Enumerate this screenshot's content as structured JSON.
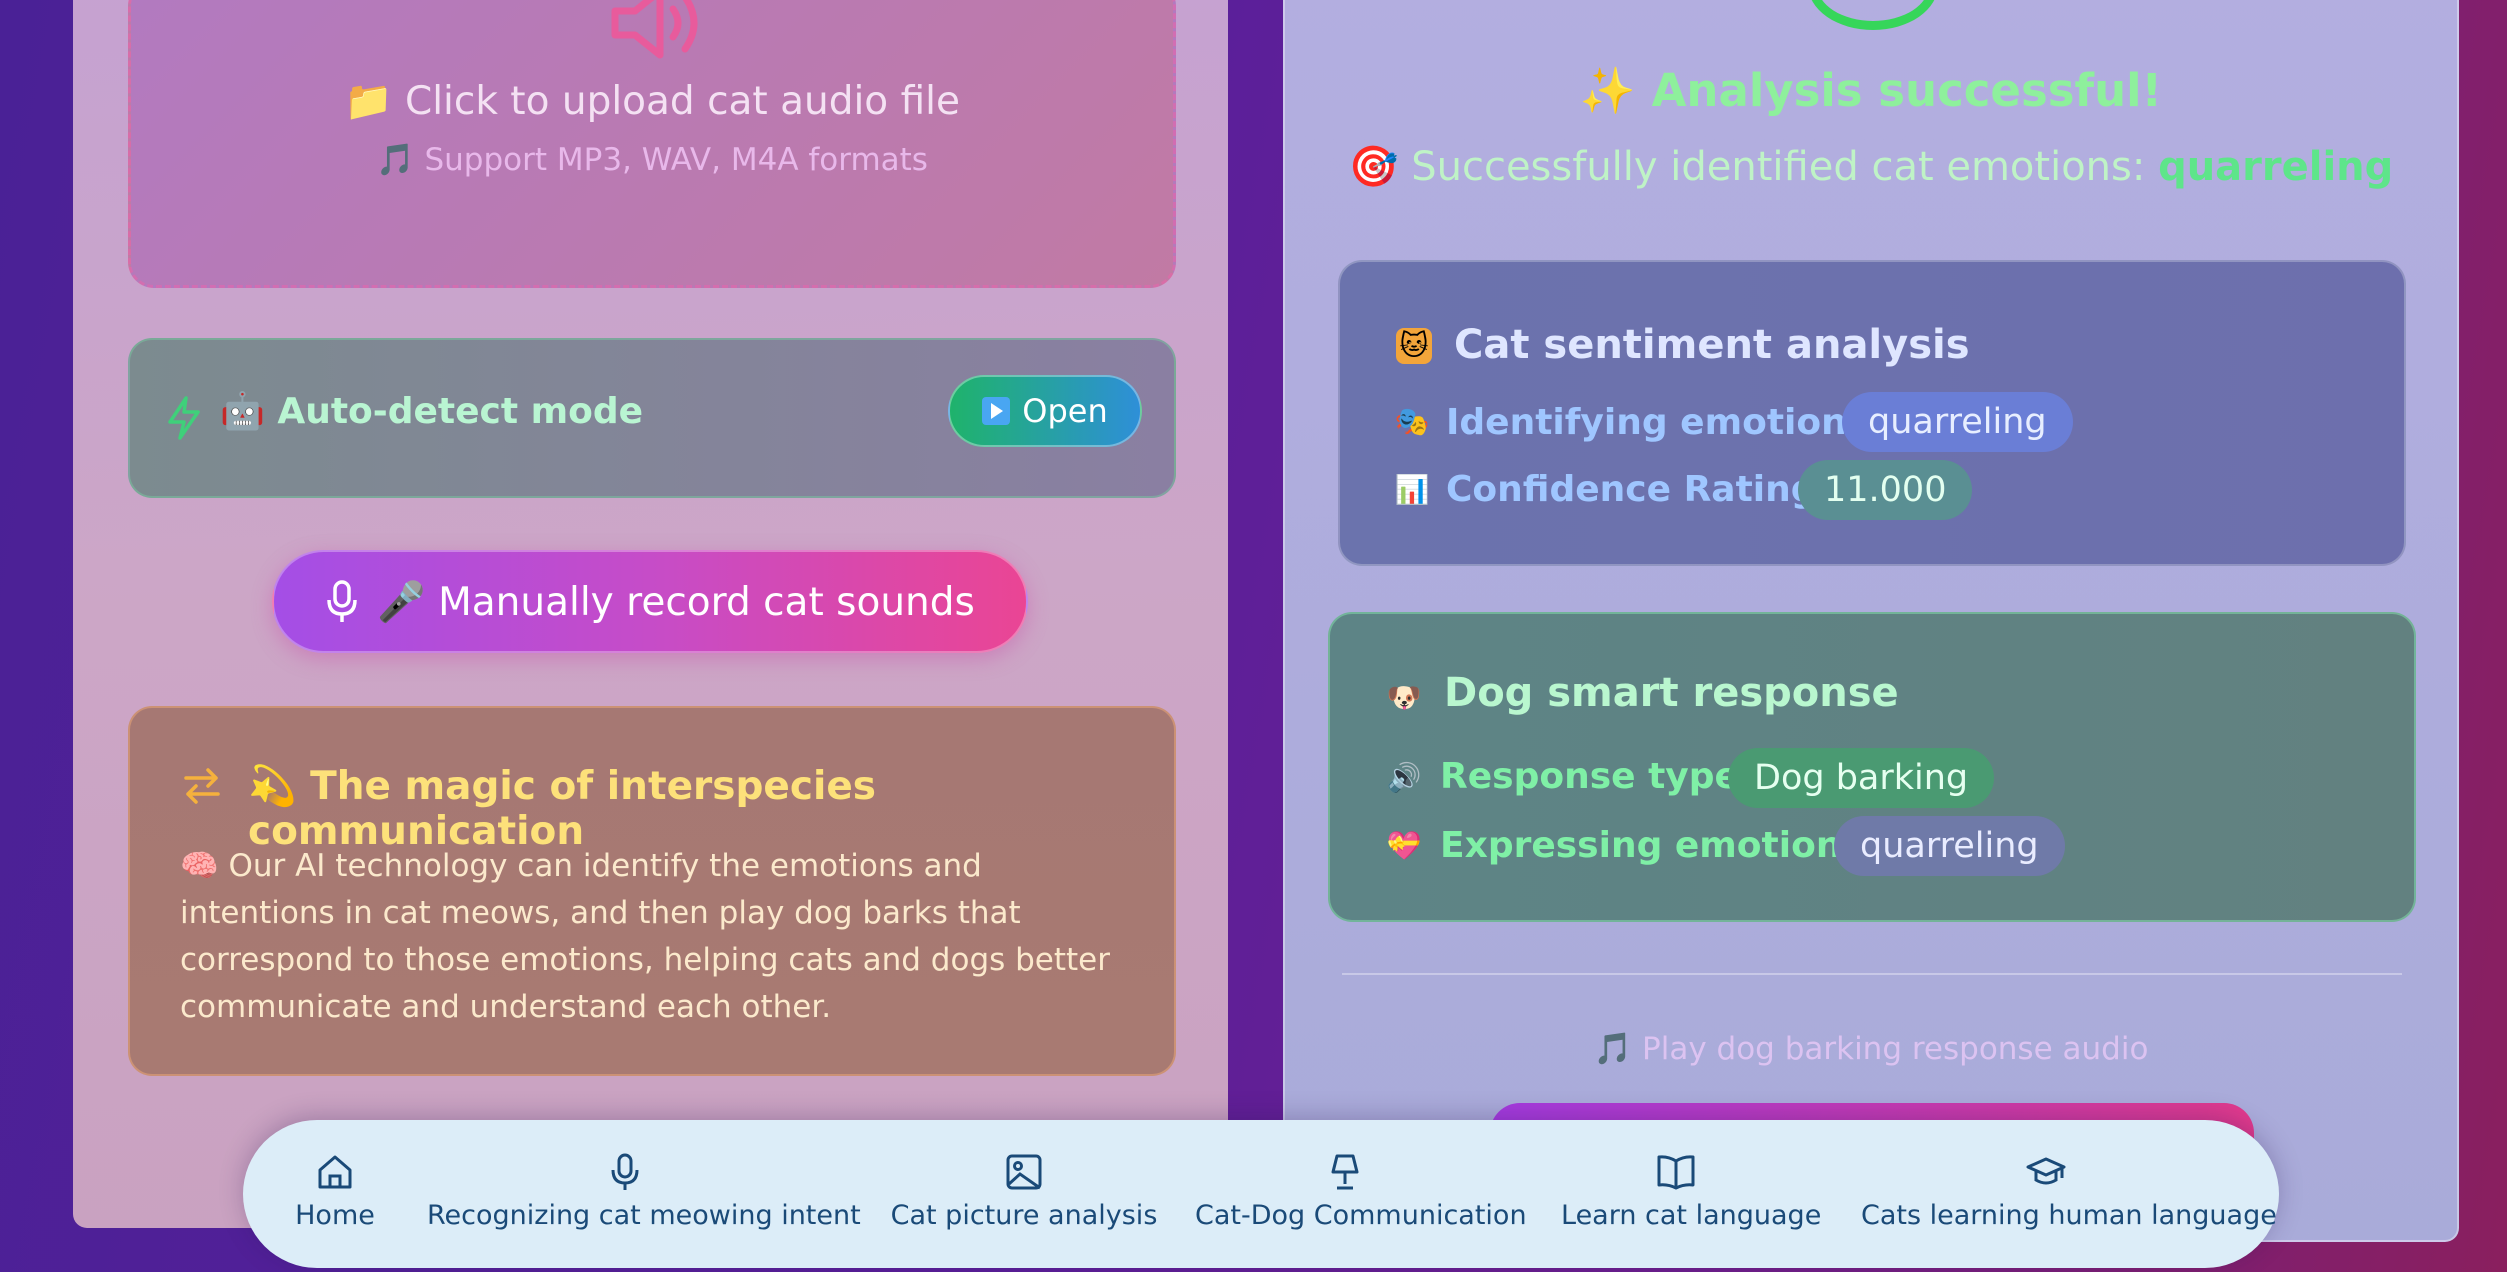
{
  "upload": {
    "icon": "speaker-icon",
    "title": "📁 Click to upload cat audio file",
    "subtitle": "🎵 Support MP3, WAV, M4A formats"
  },
  "auto_detect": {
    "label": "🤖 Auto-detect mode",
    "button_label": "Open"
  },
  "record": {
    "label": "🎤 Manually record cat sounds"
  },
  "magic": {
    "title": "💫 The magic of interspecies communication",
    "body": "🧠 Our AI technology can identify the emotions and intentions in cat meows, and then play dog barks that correspond to those emotions, helping cats and dogs better communicate and understand each other."
  },
  "result": {
    "title": "✨ Analysis successful!",
    "message_prefix": "🎯 Successfully identified cat emotions: ",
    "message_emotion": "quarreling"
  },
  "sentiment": {
    "title": "Cat sentiment analysis",
    "emotion_label": "Identifying emotions:",
    "emotion_value": "quarreling",
    "confidence_label": "Confidence Rating:",
    "confidence_value": "11.000"
  },
  "response": {
    "title": "Dog smart response",
    "type_label": "Response type:",
    "type_value": "Dog barking",
    "emotion_label": "Expressing emotions:",
    "emotion_value": "quarreling"
  },
  "audio": {
    "label": "🎵 Play dog barking response audio"
  },
  "nav": {
    "items": [
      {
        "label": "Home",
        "icon": "home-icon"
      },
      {
        "label": "Recognizing cat meowing intent",
        "icon": "microphone-icon"
      },
      {
        "label": "Cat picture analysis",
        "icon": "image-icon"
      },
      {
        "label": "Cat-Dog Communication",
        "icon": "lamp-icon"
      },
      {
        "label": "Learn cat language",
        "icon": "book-icon"
      },
      {
        "label": "Cats learning human language",
        "icon": "graduation-cap-icon"
      }
    ]
  },
  "colors": {
    "accent_green": "#8ef09c",
    "accent_pink": "#ea4594",
    "accent_purple": "#a44ee6",
    "nav_text": "#1a4a78"
  }
}
